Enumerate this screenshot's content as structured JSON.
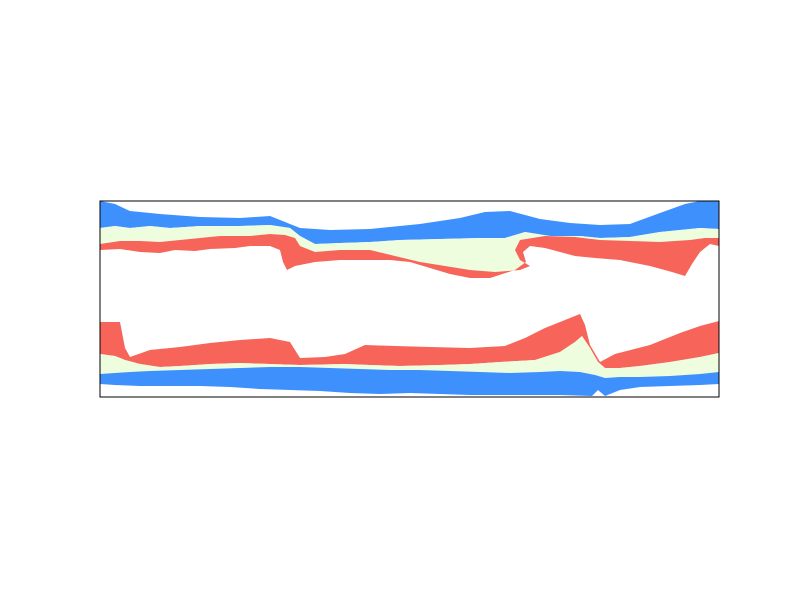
{
  "chart_data": {
    "type": "area",
    "title": "",
    "xlabel": "",
    "ylabel": "",
    "axes_visible": false,
    "frame": true,
    "grid": false,
    "legend": "none",
    "series": [
      {
        "id": "blue",
        "color": "#3e90fd"
      },
      {
        "id": "pale-green",
        "color": "#eefddd"
      },
      {
        "id": "red",
        "color": "#f6645a"
      }
    ]
  }
}
